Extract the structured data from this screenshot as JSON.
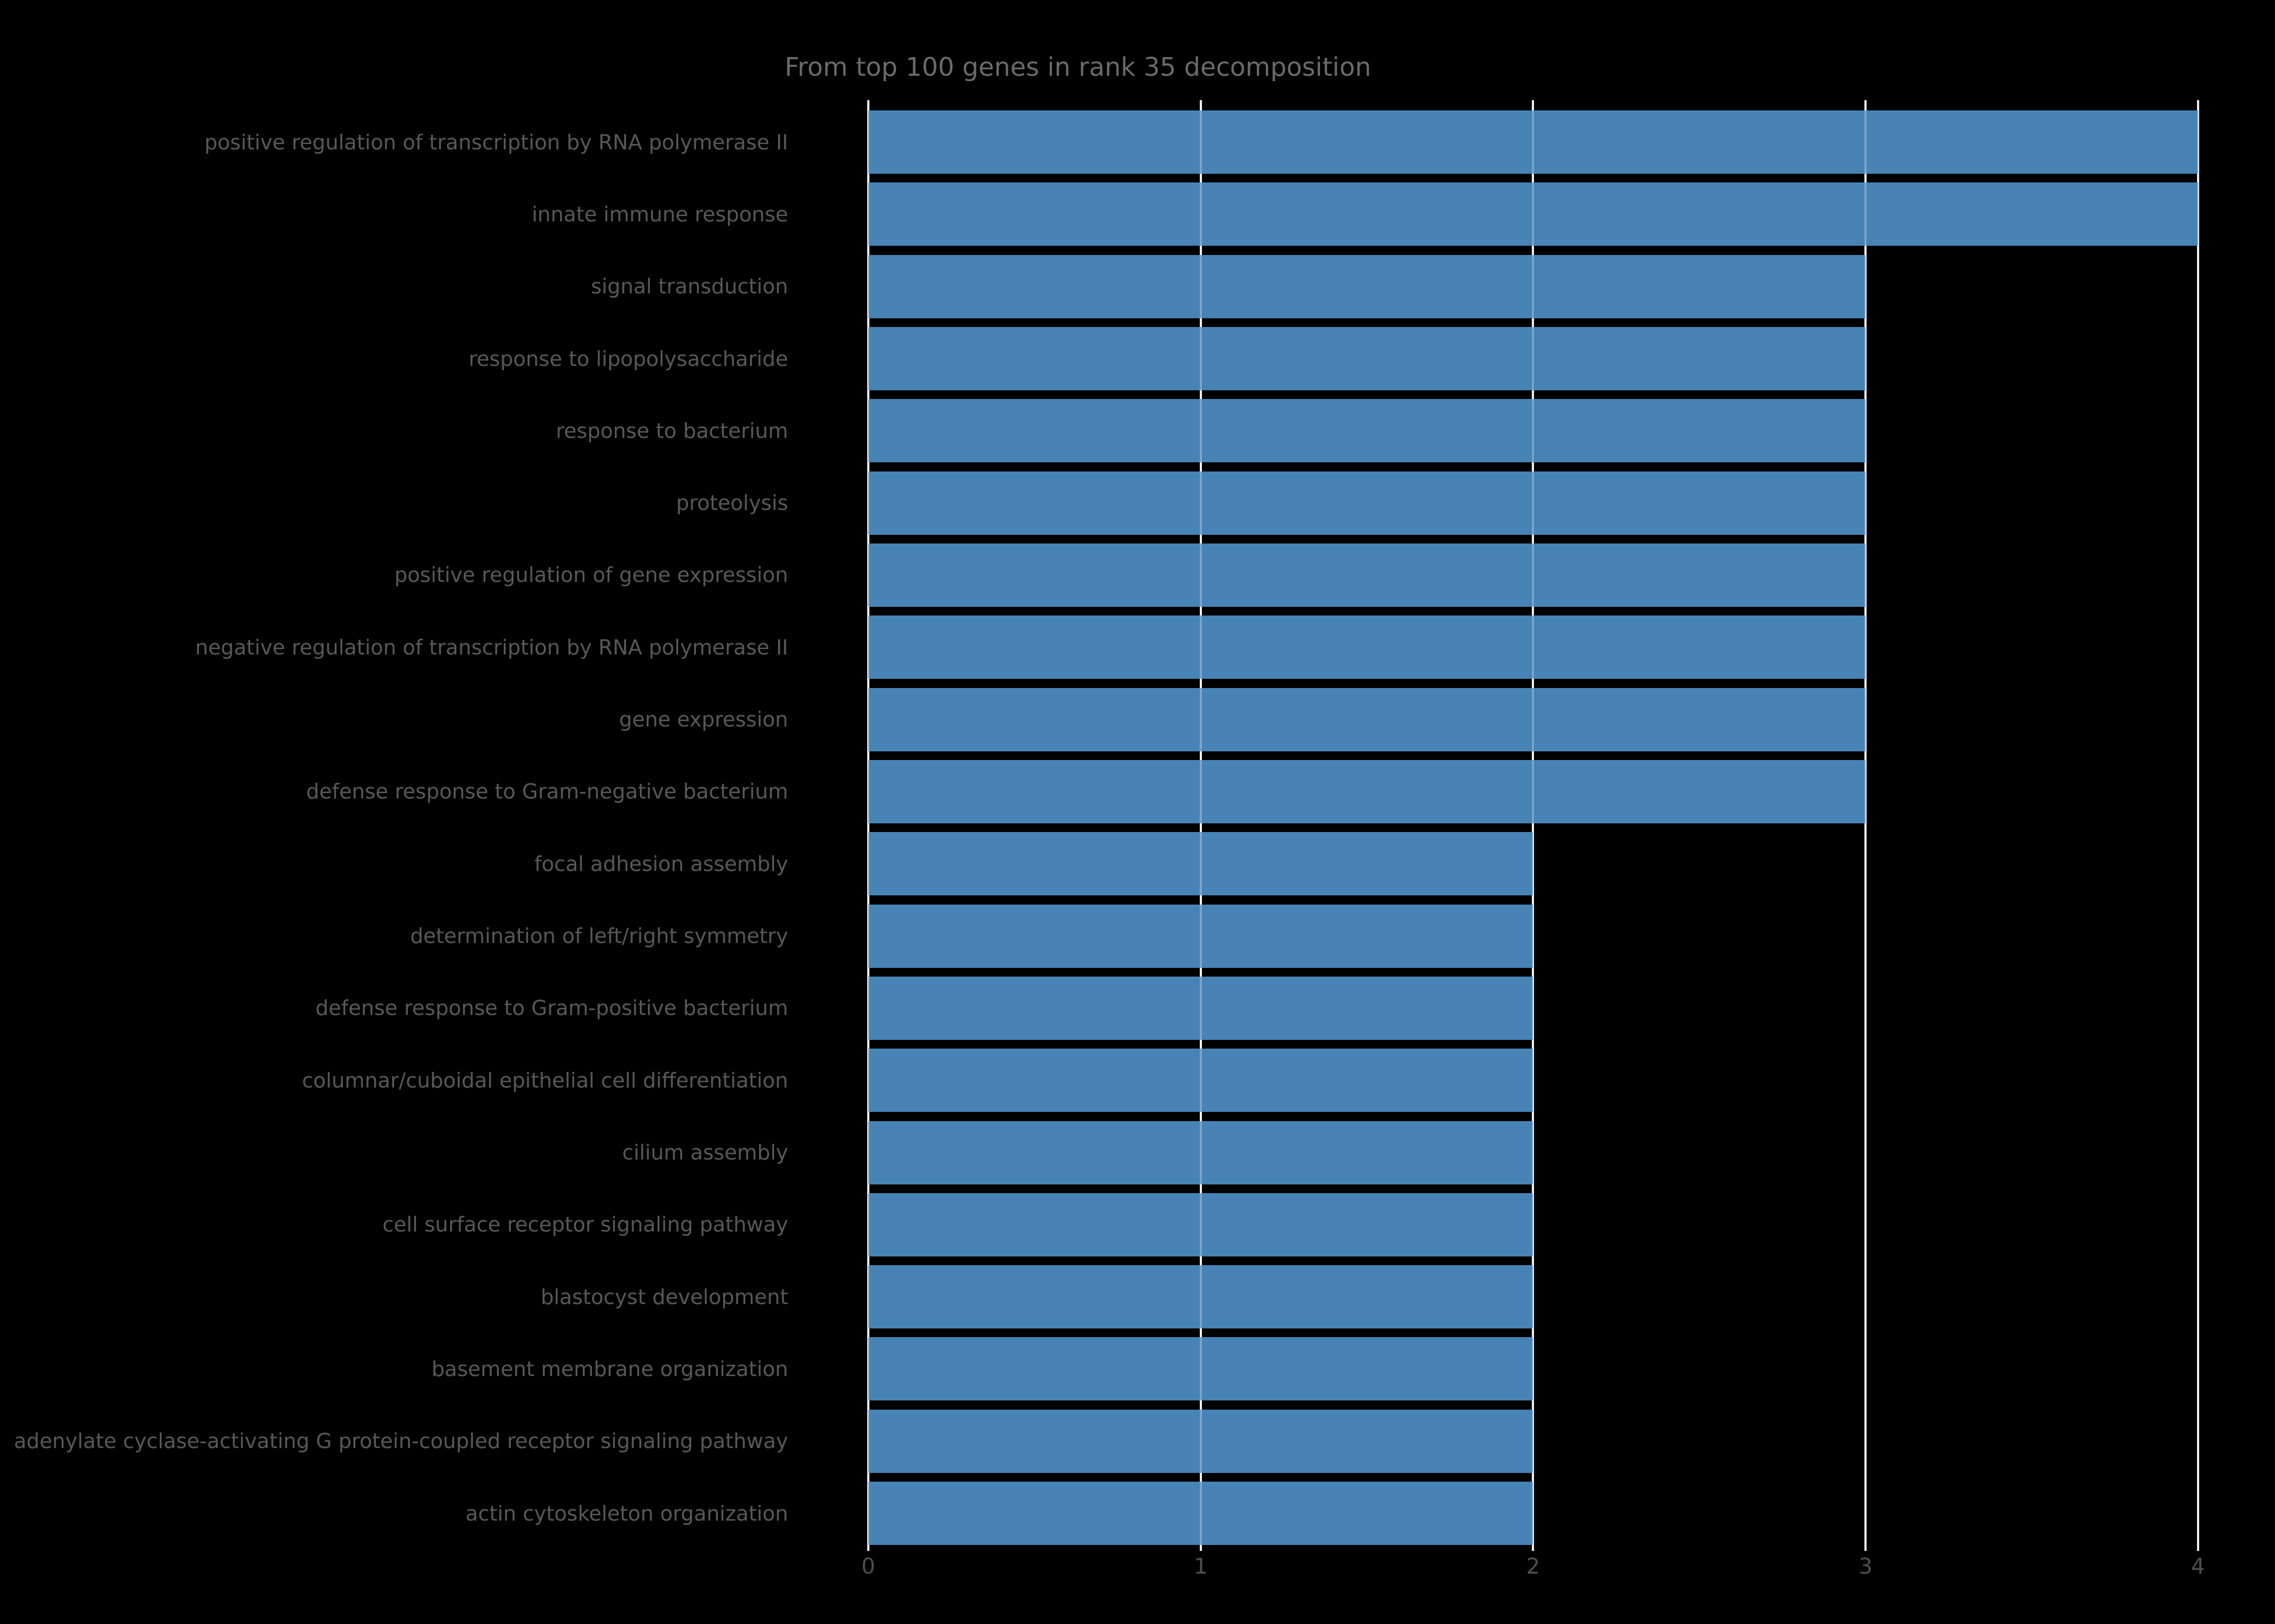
{
  "chart_data": {
    "type": "bar",
    "orientation": "horizontal",
    "title": "From top 100 genes in rank 35 decomposition",
    "categories": [
      "positive regulation of transcription by RNA polymerase II",
      "innate immune response",
      "signal transduction",
      "response to lipopolysaccharide",
      "response to bacterium",
      "proteolysis",
      "positive regulation of gene expression",
      "negative regulation of transcription by RNA polymerase II",
      "gene expression",
      "defense response to Gram-negative bacterium",
      "focal adhesion assembly",
      "determination of left/right symmetry",
      "defense response to Gram-positive bacterium",
      "columnar/cuboidal epithelial cell differentiation",
      "cilium assembly",
      "cell surface receptor signaling pathway",
      "blastocyst development",
      "basement membrane organization",
      "adenylate cyclase-activating G protein-coupled receptor signaling pathway",
      "actin cytoskeleton organization"
    ],
    "values": [
      4,
      4,
      3,
      3,
      3,
      3,
      3,
      3,
      3,
      3,
      2,
      2,
      2,
      2,
      2,
      2,
      2,
      2,
      2,
      2
    ],
    "xlabel": "",
    "ylabel": "",
    "x_ticks": [
      "0",
      "1",
      "2",
      "3",
      "4"
    ],
    "xlim": [
      0,
      4
    ],
    "grid": "vertical",
    "legend": "none",
    "colors": {
      "background": "#000000",
      "bar": "#4783b4",
      "grid_line": "#e9e9e9",
      "grid_overlay": "rgba(255,255,255,0.28)",
      "title_text": "#6a6a6a",
      "label_text": "#585858",
      "tick_text": "#4e4e4e"
    }
  }
}
